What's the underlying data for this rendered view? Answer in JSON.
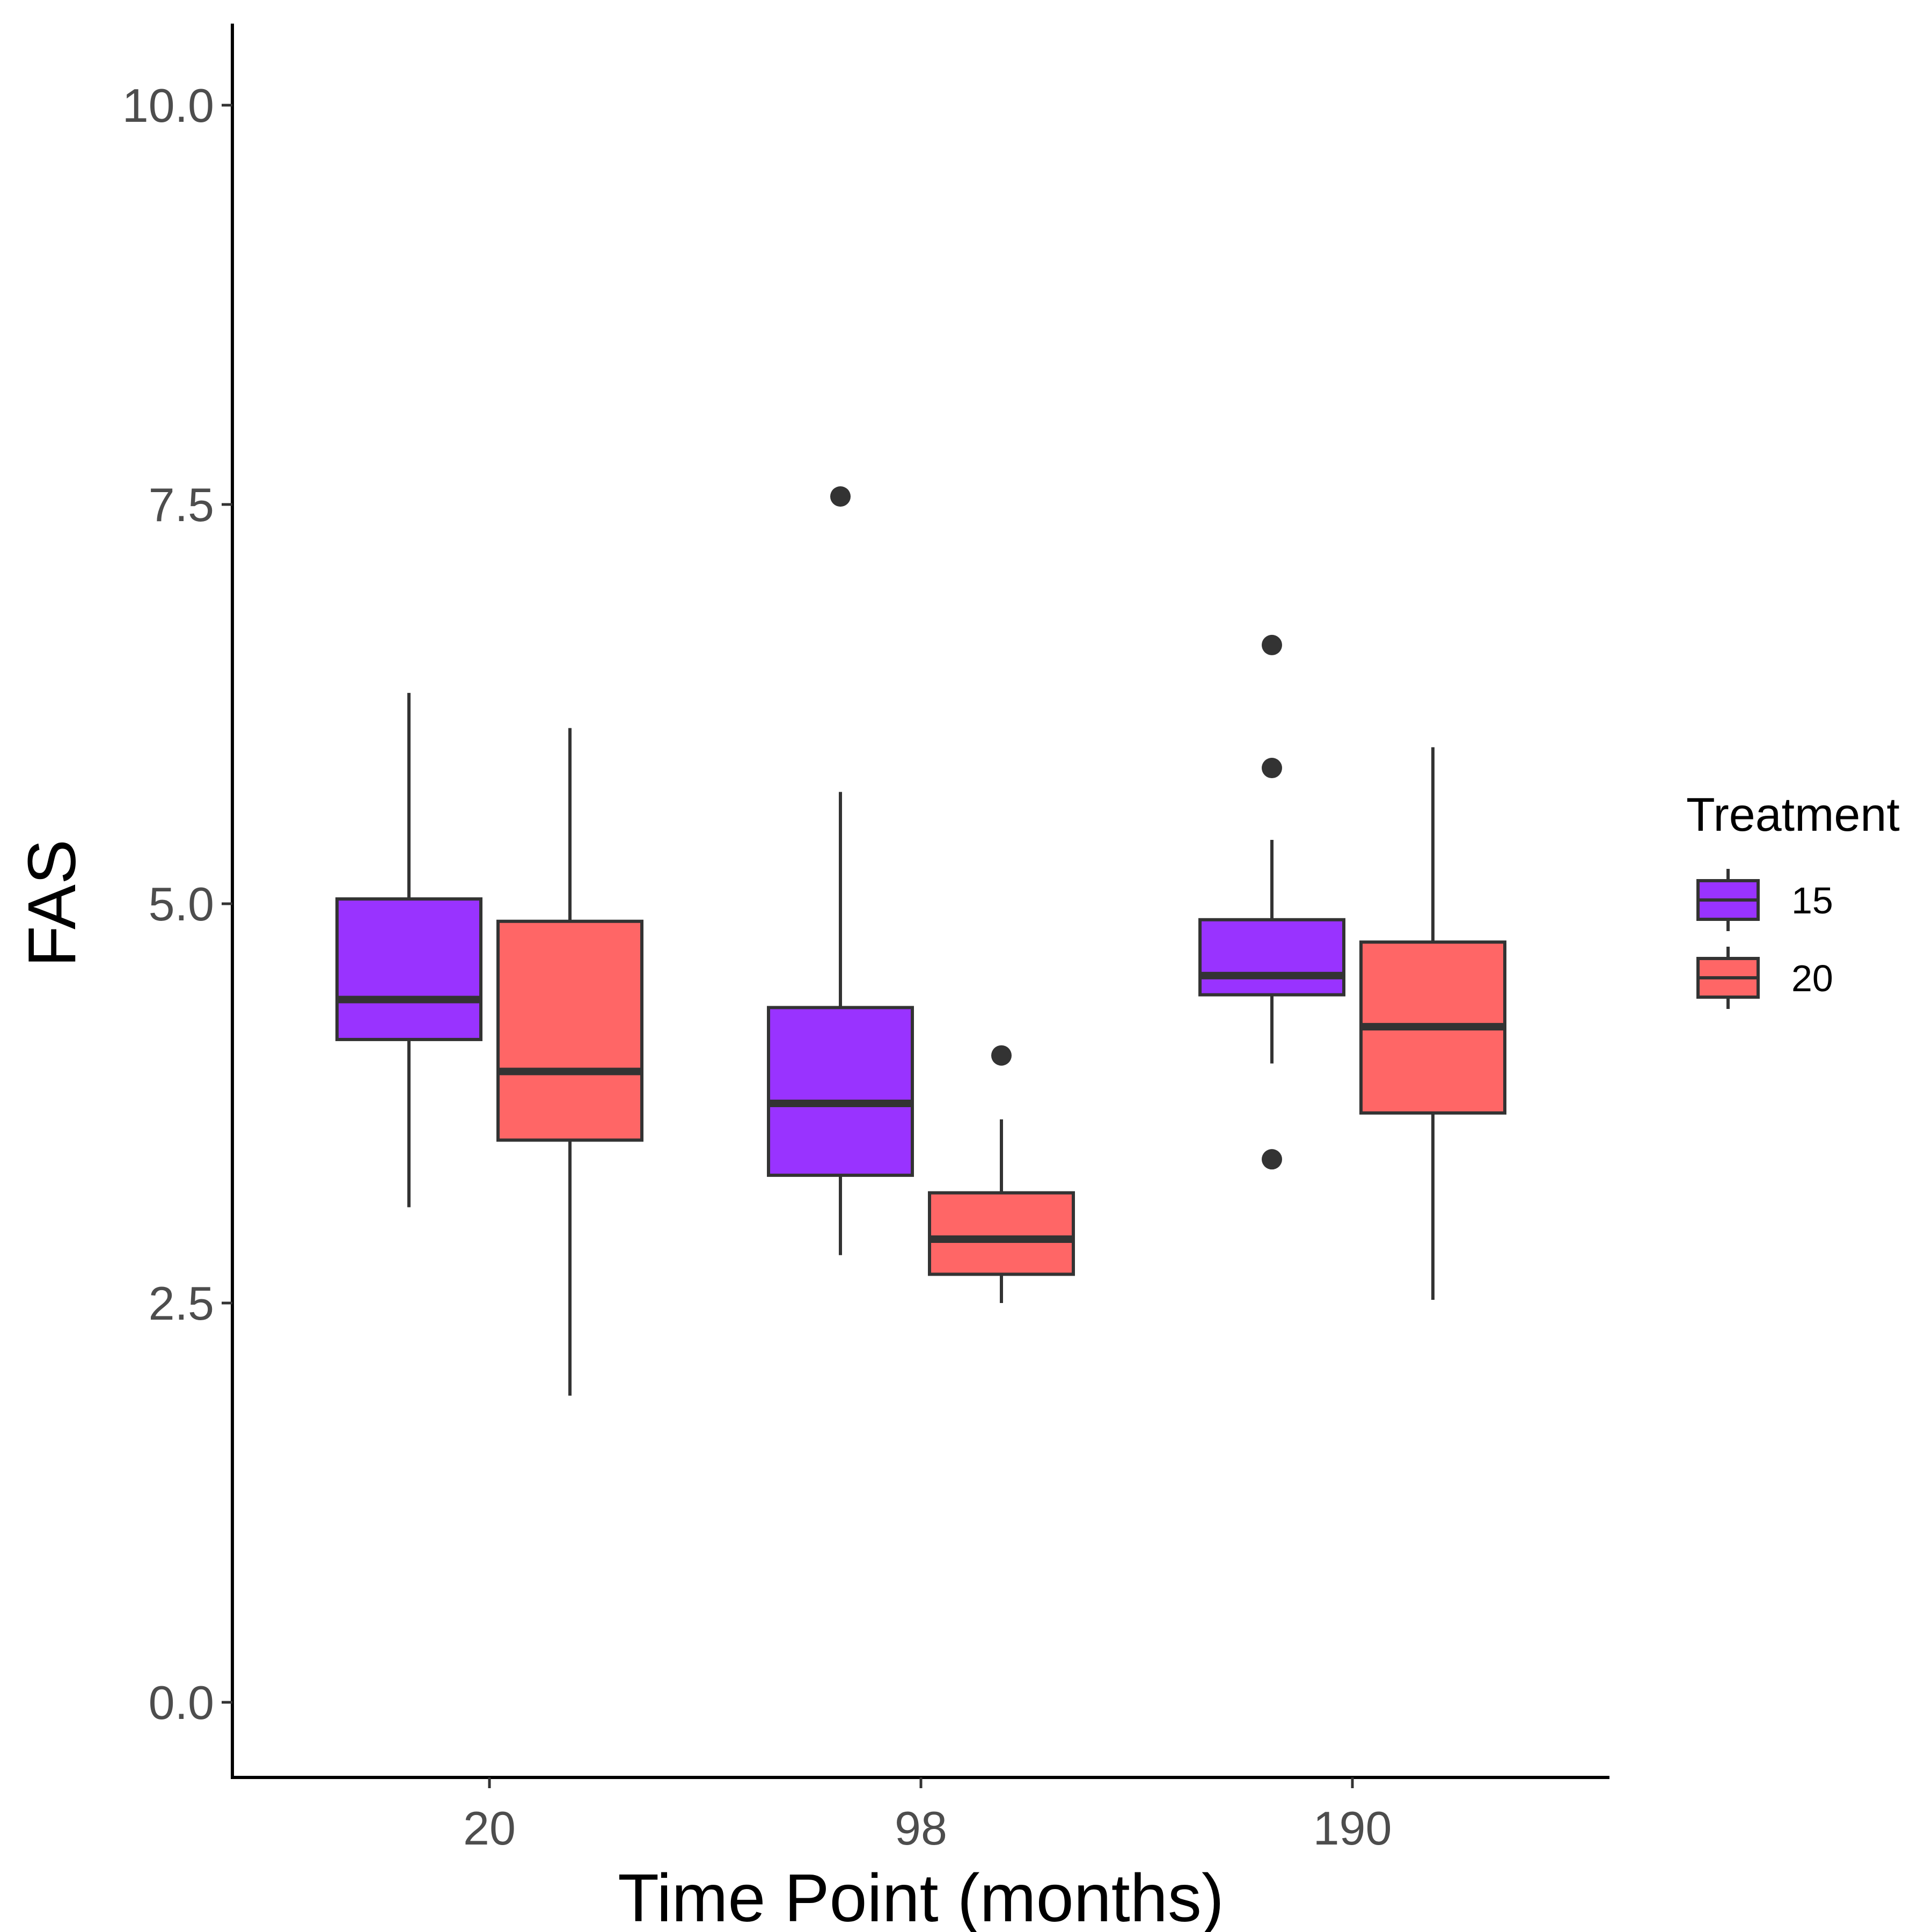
{
  "chart_data": {
    "type": "boxplot",
    "xlabel": "Time Point (months)",
    "ylabel": "FAS",
    "categories": [
      "20",
      "98",
      "190"
    ],
    "ylim": [
      -0.5,
      10.5
    ],
    "yticks": [
      "0.0",
      "2.5",
      "5.0",
      "7.5",
      "10.0"
    ],
    "yticks_values": [
      0.0,
      2.5,
      5.0,
      7.5,
      10.0
    ],
    "legend": {
      "title": "Treatment",
      "placement": "right",
      "items": [
        {
          "label": "15",
          "color": "#9933FF"
        },
        {
          "label": "20",
          "color": "#FF6666"
        }
      ]
    },
    "series": [
      {
        "name": "15",
        "color": "#9933FF",
        "boxes": [
          {
            "category": "20",
            "whisker_low": 3.1,
            "q1": 4.15,
            "median": 4.4,
            "q3": 5.03,
            "whisker_high": 6.32,
            "outliers": []
          },
          {
            "category": "98",
            "whisker_low": 2.8,
            "q1": 3.3,
            "median": 3.75,
            "q3": 4.35,
            "whisker_high": 5.7,
            "outliers": [
              7.55
            ]
          },
          {
            "category": "190",
            "whisker_low": 4.0,
            "q1": 4.43,
            "median": 4.55,
            "q3": 4.9,
            "whisker_high": 5.4,
            "outliers": [
              6.62,
              5.85,
              3.4
            ]
          }
        ]
      },
      {
        "name": "20",
        "color": "#FF6666",
        "boxes": [
          {
            "category": "20",
            "whisker_low": 1.92,
            "q1": 3.52,
            "median": 3.95,
            "q3": 4.89,
            "whisker_high": 6.1,
            "outliers": []
          },
          {
            "category": "98",
            "whisker_low": 2.5,
            "q1": 2.68,
            "median": 2.9,
            "q3": 3.19,
            "whisker_high": 3.65,
            "outliers": [
              4.05
            ]
          },
          {
            "category": "190",
            "whisker_low": 2.52,
            "q1": 3.69,
            "median": 4.23,
            "q3": 4.76,
            "whisker_high": 5.98,
            "outliers": []
          }
        ]
      }
    ]
  }
}
